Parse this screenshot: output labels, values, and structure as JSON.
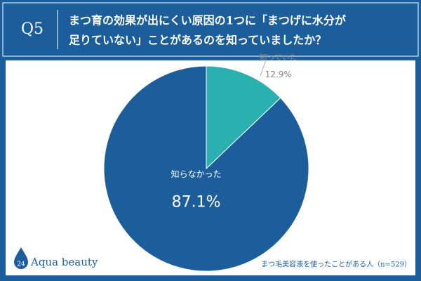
{
  "question": "Q5",
  "brand": {
    "number": "24",
    "name": "Aqua beauty"
  },
  "note": "まつ毛美容液を使ったことがある人（n=529）",
  "chart_data": {
    "type": "pie",
    "title_lines": [
      "まつ育の効果が出にくい原因の1つに「まつげに水分が",
      "足りていない」ことがあるのを知っていましたか？"
    ],
    "categories": [
      "知っていた",
      "知らなかった"
    ],
    "values": [
      12.9,
      87.1
    ],
    "value_labels": [
      "12.9%",
      "87.1%"
    ],
    "colors": [
      "#2ab0ae",
      "#1b5e9b"
    ]
  }
}
